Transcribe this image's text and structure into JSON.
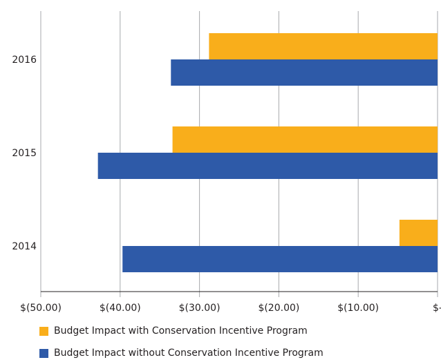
{
  "chart_data": {
    "type": "bar",
    "orientation": "horizontal",
    "categories": [
      "2014",
      "2015",
      "2016"
    ],
    "series": [
      {
        "name": "Budget Impact with Conservation Incentive Program",
        "color": "#f9ae1b",
        "values": [
          -4.8,
          -33.4,
          -28.8
        ]
      },
      {
        "name": "Budget Impact without Conservation Incentive Program",
        "color": "#2e5aa8",
        "values": [
          -39.7,
          -42.8,
          -33.6
        ]
      }
    ],
    "x_ticks": [
      "$(50.00)",
      "$(40.00)",
      "$(30.00)",
      "$(20.00)",
      "$(10.00)",
      "$-"
    ],
    "xlim": [
      -50,
      0
    ],
    "grid": "vertical",
    "legend_position": "bottom"
  }
}
